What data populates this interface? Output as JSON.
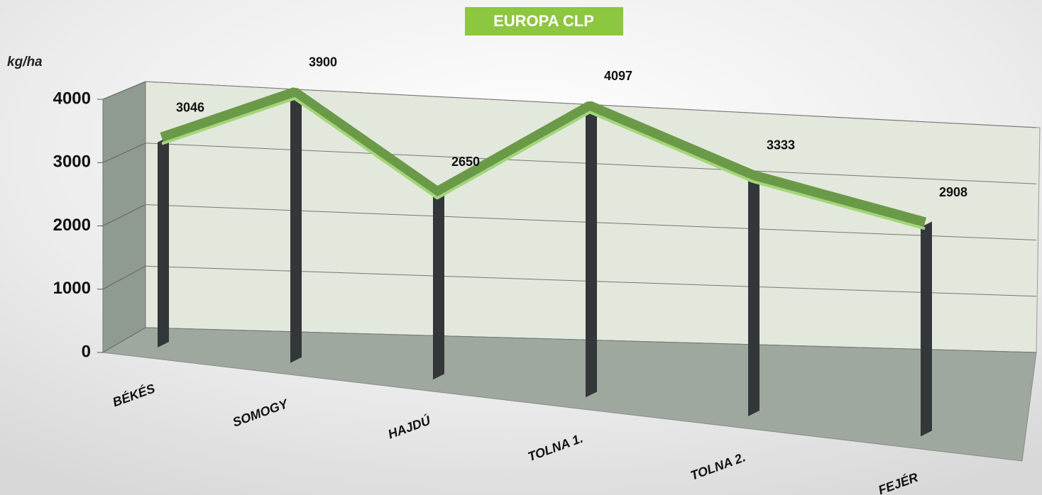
{
  "chart_data": {
    "type": "line3d",
    "title": "EUROPA CLP",
    "y_label": "kg/ha",
    "categories": [
      "BÉKÉS",
      "SOMOGY",
      "HAJDÚ",
      "TOLNA 1.",
      "TOLNA 2.",
      "FEJÉR"
    ],
    "values": [
      3046,
      3900,
      2650,
      4097,
      3333,
      2908
    ],
    "color": "#6a9a48",
    "ylim": [
      0,
      4000
    ],
    "yticks": [
      0,
      1000,
      2000,
      3000,
      4000
    ],
    "grid": true
  }
}
